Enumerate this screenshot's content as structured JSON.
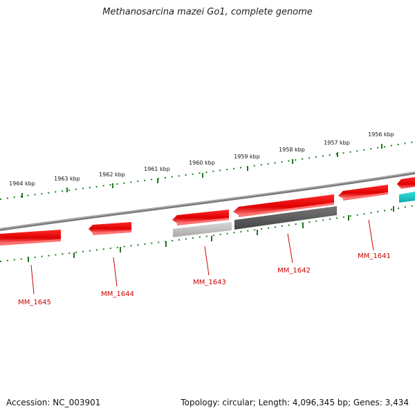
{
  "title": "Methanosarcina mazei Go1, complete genome",
  "footer": {
    "accession": "Accession: NC_003901",
    "summary": "Topology: circular; Length: 4,096,345 bp; Genes: 3,434"
  },
  "ruler_top": [
    "1964 kbp",
    "1963 kbp",
    "1962 kbp",
    "1961 kbp",
    "1960 kbp",
    "1959 kbp",
    "1958 kbp",
    "1957 kbp",
    "1956 kbp"
  ],
  "gene_labels": [
    "MM_1645",
    "MM_1644",
    "MM_1643",
    "MM_1642",
    "MM_1641"
  ],
  "colors": {
    "gene_red": "#ee0000",
    "gene_red_light": "#ff6b6b",
    "gene_gray_light": "#bbbbbb",
    "gene_gray_dark": "#555555",
    "gene_cyan": "#22cccc",
    "ruler_green": "#1a7a1a",
    "backbone": "#888888",
    "label_red": "#cc0000"
  }
}
